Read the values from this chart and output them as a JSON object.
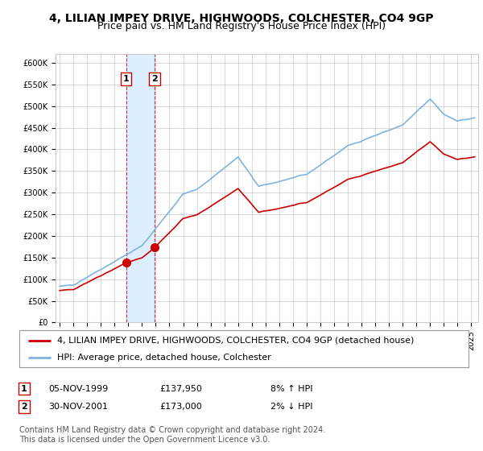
{
  "title": "4, LILIAN IMPEY DRIVE, HIGHWOODS, COLCHESTER, CO4 9GP",
  "subtitle": "Price paid vs. HM Land Registry's House Price Index (HPI)",
  "ylim": [
    0,
    620000
  ],
  "yticks": [
    0,
    50000,
    100000,
    150000,
    200000,
    250000,
    300000,
    350000,
    400000,
    450000,
    500000,
    550000,
    600000
  ],
  "ytick_labels": [
    "£0",
    "£50K",
    "£100K",
    "£150K",
    "£200K",
    "£250K",
    "£300K",
    "£350K",
    "£400K",
    "£450K",
    "£500K",
    "£550K",
    "£600K"
  ],
  "xlim_start": 1994.7,
  "xlim_end": 2025.5,
  "transaction1_x": 1999.85,
  "transaction1_y": 137950,
  "transaction2_x": 2001.92,
  "transaction2_y": 173000,
  "legend_line1": "4, LILIAN IMPEY DRIVE, HIGHWOODS, COLCHESTER, CO4 9GP (detached house)",
  "legend_line2": "HPI: Average price, detached house, Colchester",
  "note1_label": "1",
  "note1_date": "05-NOV-1999",
  "note1_price": "£137,950",
  "note1_hpi": "8% ↑ HPI",
  "note2_label": "2",
  "note2_date": "30-NOV-2001",
  "note2_price": "£173,000",
  "note2_hpi": "2% ↓ HPI",
  "footer": "Contains HM Land Registry data © Crown copyright and database right 2024.\nThis data is licensed under the Open Government Licence v3.0.",
  "line_red_color": "#cc0000",
  "line_blue_color": "#7fb3e0",
  "shade_color": "#ddeeff",
  "grid_color": "#cccccc",
  "bg_color": "#ffffff",
  "title_fontsize": 10,
  "subtitle_fontsize": 9,
  "tick_fontsize": 7,
  "legend_fontsize": 8,
  "note_fontsize": 8,
  "footer_fontsize": 7
}
